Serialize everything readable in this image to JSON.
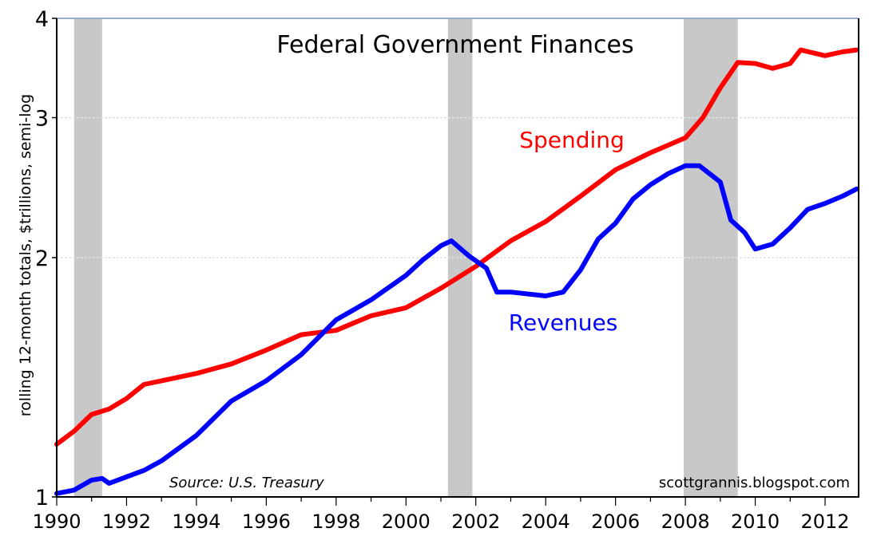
{
  "chart_data": {
    "type": "line",
    "title": "Federal Government Finances",
    "ylabel": "rolling 12-month totals, $trillions, semi-log",
    "xlabel": "",
    "yscale": "log",
    "ylim": [
      1,
      4
    ],
    "xlim": [
      1990,
      2012.96
    ],
    "yticks": [
      1,
      2,
      3,
      4
    ],
    "ytick_labels": [
      "1",
      "2",
      "3",
      "4"
    ],
    "xticks": [
      1990,
      1992,
      1994,
      1996,
      1998,
      2000,
      2002,
      2004,
      2006,
      2008,
      2010,
      2012
    ],
    "xtick_labels": [
      "1990",
      "1992",
      "1994",
      "1996",
      "1998",
      "2000",
      "2002",
      "2004",
      "2006",
      "2008",
      "2010",
      "2012"
    ],
    "grid": true,
    "recessions": [
      {
        "start": 1990.5,
        "end": 1991.3
      },
      {
        "start": 2001.2,
        "end": 2001.9
      },
      {
        "start": 2007.95,
        "end": 2009.5
      }
    ],
    "series": [
      {
        "name": "Spending",
        "color": "#ff0000",
        "label_position": [
          2004.75,
          2.75
        ],
        "points": [
          [
            1990.0,
            1.165
          ],
          [
            1990.5,
            1.21
          ],
          [
            1991.0,
            1.27
          ],
          [
            1991.5,
            1.29
          ],
          [
            1992.0,
            1.33
          ],
          [
            1992.5,
            1.385
          ],
          [
            1993.0,
            1.4
          ],
          [
            1994.0,
            1.43
          ],
          [
            1995.0,
            1.47
          ],
          [
            1996.0,
            1.53
          ],
          [
            1997.0,
            1.6
          ],
          [
            1998.0,
            1.62
          ],
          [
            1999.0,
            1.69
          ],
          [
            2000.0,
            1.73
          ],
          [
            2001.0,
            1.83
          ],
          [
            2002.0,
            1.95
          ],
          [
            2003.0,
            2.1
          ],
          [
            2004.0,
            2.22
          ],
          [
            2005.0,
            2.39
          ],
          [
            2006.0,
            2.58
          ],
          [
            2007.0,
            2.71
          ],
          [
            2008.0,
            2.83
          ],
          [
            2008.5,
            3.0
          ],
          [
            2009.0,
            3.27
          ],
          [
            2009.5,
            3.52
          ],
          [
            2010.0,
            3.51
          ],
          [
            2010.5,
            3.46
          ],
          [
            2011.0,
            3.51
          ],
          [
            2011.3,
            3.65
          ],
          [
            2012.0,
            3.59
          ],
          [
            2012.5,
            3.63
          ],
          [
            2012.9,
            3.65
          ]
        ]
      },
      {
        "name": "Revenues",
        "color": "#0000ff",
        "label_position": [
          2004.5,
          1.62
        ],
        "points": [
          [
            1990.0,
            1.01
          ],
          [
            1990.5,
            1.02
          ],
          [
            1991.0,
            1.05
          ],
          [
            1991.3,
            1.055
          ],
          [
            1991.5,
            1.04
          ],
          [
            1992.0,
            1.06
          ],
          [
            1992.5,
            1.08
          ],
          [
            1993.0,
            1.11
          ],
          [
            1994.0,
            1.195
          ],
          [
            1995.0,
            1.32
          ],
          [
            1996.0,
            1.4
          ],
          [
            1997.0,
            1.51
          ],
          [
            1998.0,
            1.67
          ],
          [
            1999.0,
            1.77
          ],
          [
            2000.0,
            1.9
          ],
          [
            2000.5,
            1.99
          ],
          [
            2001.0,
            2.07
          ],
          [
            2001.3,
            2.1
          ],
          [
            2001.8,
            2.01
          ],
          [
            2002.3,
            1.94
          ],
          [
            2002.6,
            1.81
          ],
          [
            2003.0,
            1.81
          ],
          [
            2004.0,
            1.79
          ],
          [
            2004.5,
            1.81
          ],
          [
            2005.0,
            1.93
          ],
          [
            2005.5,
            2.11
          ],
          [
            2006.0,
            2.21
          ],
          [
            2006.5,
            2.37
          ],
          [
            2007.0,
            2.47
          ],
          [
            2007.5,
            2.55
          ],
          [
            2008.0,
            2.61
          ],
          [
            2008.4,
            2.61
          ],
          [
            2009.0,
            2.49
          ],
          [
            2009.3,
            2.23
          ],
          [
            2009.7,
            2.15
          ],
          [
            2010.0,
            2.05
          ],
          [
            2010.5,
            2.08
          ],
          [
            2011.0,
            2.18
          ],
          [
            2011.5,
            2.3
          ],
          [
            2012.0,
            2.34
          ],
          [
            2012.5,
            2.39
          ],
          [
            2012.9,
            2.44
          ]
        ]
      }
    ],
    "annotations": {
      "source": "Source: U.S. Treasury",
      "credit": "scottgrannis.blogspot.com"
    }
  }
}
